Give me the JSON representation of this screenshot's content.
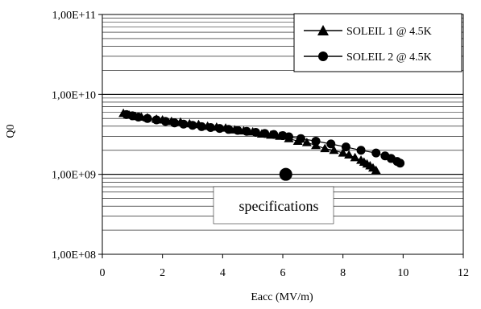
{
  "chart_data": {
    "type": "scatter",
    "xlabel": "Eacc (MV/m)",
    "ylabel": "Q0",
    "xlim": [
      0,
      12
    ],
    "ylim": [
      100000000,
      100000000000
    ],
    "y_scale": "log",
    "x_ticks": [
      0,
      2,
      4,
      6,
      8,
      10,
      12
    ],
    "x_tick_labels": [
      "0",
      "2",
      "4",
      "6",
      "8",
      "10",
      "12"
    ],
    "y_ticks": [
      100000000,
      1000000000,
      10000000000,
      100000000000
    ],
    "y_tick_labels": [
      "1,00E+08",
      "1,00E+09",
      "1,00E+10",
      "1,00E+11"
    ],
    "grid": "horizontal-major-minor",
    "legend_position": "top-right",
    "series": [
      {
        "name": "SOLEIL 1 @ 4.5K",
        "marker": "triangle",
        "color": "#000000",
        "x": [
          0.7,
          0.9,
          1.1,
          1.3,
          1.5,
          1.8,
          2.0,
          2.3,
          2.6,
          2.9,
          3.2,
          3.5,
          3.8,
          4.1,
          4.4,
          4.7,
          5.0,
          5.3,
          5.6,
          5.9,
          6.2,
          6.5,
          6.8,
          7.1,
          7.4,
          7.7,
          8.0,
          8.2,
          8.4,
          8.6,
          8.7,
          8.8,
          8.9,
          9.0,
          9.1
        ],
        "y": [
          5800000000.0,
          5500000000.0,
          5300000000.0,
          5200000000.0,
          5100000000.0,
          4900000000.0,
          4800000000.0,
          4600000000.0,
          4500000000.0,
          4300000000.0,
          4200000000.0,
          4000000000.0,
          3900000000.0,
          3800000000.0,
          3600000000.0,
          3500000000.0,
          3400000000.0,
          3200000000.0,
          3100000000.0,
          3000000000.0,
          2800000000.0,
          2600000000.0,
          2500000000.0,
          2300000000.0,
          2100000000.0,
          2000000000.0,
          1850000000.0,
          1750000000.0,
          1620000000.0,
          1500000000.0,
          1420000000.0,
          1350000000.0,
          1280000000.0,
          1200000000.0,
          1120000000.0
        ]
      },
      {
        "name": "SOLEIL 2 @ 4.5K",
        "marker": "circle",
        "color": "#000000",
        "x": [
          0.8,
          1.0,
          1.2,
          1.5,
          1.8,
          2.1,
          2.4,
          2.7,
          3.0,
          3.3,
          3.6,
          3.9,
          4.2,
          4.5,
          4.8,
          5.1,
          5.4,
          5.7,
          6.0,
          6.2,
          6.6,
          7.1,
          7.6,
          8.1,
          8.6,
          9.1,
          9.4,
          9.6,
          9.8,
          9.9
        ],
        "y": [
          5600000000.0,
          5400000000.0,
          5200000000.0,
          5000000000.0,
          4800000000.0,
          4600000000.0,
          4400000000.0,
          4250000000.0,
          4100000000.0,
          3950000000.0,
          3850000000.0,
          3750000000.0,
          3650000000.0,
          3550000000.0,
          3450000000.0,
          3350000000.0,
          3250000000.0,
          3150000000.0,
          3050000000.0,
          2950000000.0,
          2800000000.0,
          2600000000.0,
          2400000000.0,
          2200000000.0,
          2000000000.0,
          1850000000.0,
          1700000000.0,
          1580000000.0,
          1450000000.0,
          1380000000.0
        ]
      }
    ],
    "annotation": {
      "marker": "large-circle",
      "x": 6.1,
      "y": 1000000000.0,
      "text": "specifications"
    }
  }
}
